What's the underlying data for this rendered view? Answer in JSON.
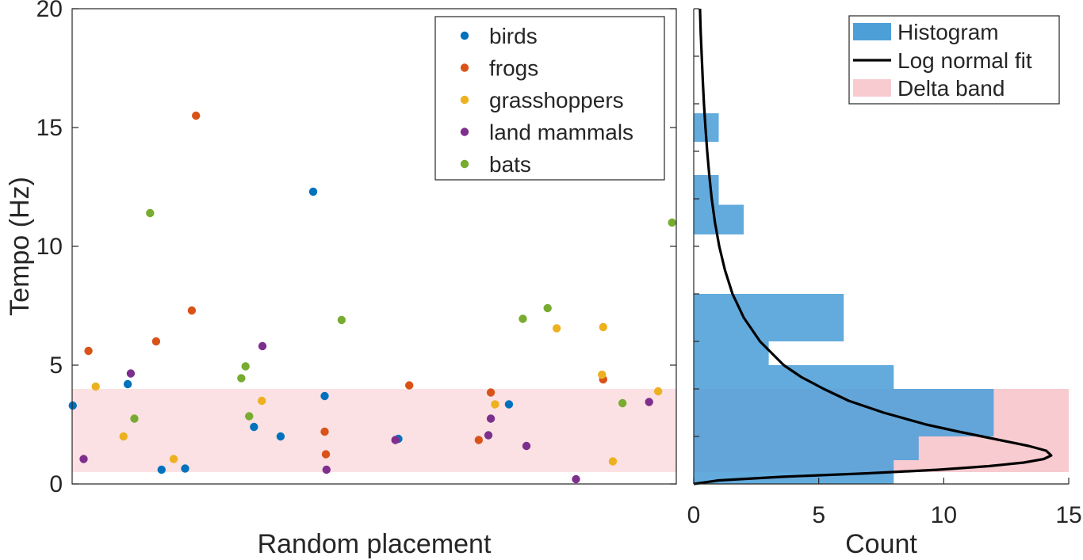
{
  "chart_data": [
    {
      "type": "scatter",
      "xlabel": "Random placement",
      "ylabel": "Tempo (Hz)",
      "ylim": [
        0,
        20
      ],
      "xlim": [
        0,
        1
      ],
      "yticks": [
        "0",
        "5",
        "10",
        "15",
        "20"
      ],
      "legend_position": "top-right",
      "band": {
        "y0": 0.5,
        "y1": 4.0,
        "color": "#fbe1e3"
      },
      "series": [
        {
          "name": "birds",
          "color": "#0072bd",
          "points": [
            {
              "x": 0.001,
              "y": 3.3
            },
            {
              "x": 0.092,
              "y": 4.2
            },
            {
              "x": 0.148,
              "y": 0.6
            },
            {
              "x": 0.187,
              "y": 0.65
            },
            {
              "x": 0.301,
              "y": 2.4
            },
            {
              "x": 0.345,
              "y": 2.0
            },
            {
              "x": 0.399,
              "y": 12.3
            },
            {
              "x": 0.418,
              "y": 3.7
            },
            {
              "x": 0.54,
              "y": 1.9
            },
            {
              "x": 0.723,
              "y": 3.35
            }
          ]
        },
        {
          "name": "frogs",
          "color": "#d95319",
          "points": [
            {
              "x": 0.027,
              "y": 5.6
            },
            {
              "x": 0.139,
              "y": 6.0
            },
            {
              "x": 0.198,
              "y": 7.3
            },
            {
              "x": 0.205,
              "y": 15.5
            },
            {
              "x": 0.418,
              "y": 2.2
            },
            {
              "x": 0.42,
              "y": 1.25
            },
            {
              "x": 0.558,
              "y": 4.15
            },
            {
              "x": 0.673,
              "y": 1.85
            },
            {
              "x": 0.693,
              "y": 3.85
            },
            {
              "x": 0.879,
              "y": 4.4
            }
          ]
        },
        {
          "name": "grasshoppers",
          "color": "#edb120",
          "points": [
            {
              "x": 0.039,
              "y": 4.1
            },
            {
              "x": 0.085,
              "y": 2.0
            },
            {
              "x": 0.168,
              "y": 1.05
            },
            {
              "x": 0.314,
              "y": 3.5
            },
            {
              "x": 0.7,
              "y": 3.35
            },
            {
              "x": 0.802,
              "y": 6.55
            },
            {
              "x": 0.877,
              "y": 4.6
            },
            {
              "x": 0.879,
              "y": 6.6
            },
            {
              "x": 0.895,
              "y": 0.95
            },
            {
              "x": 0.97,
              "y": 3.9
            }
          ]
        },
        {
          "name": "land mammals",
          "color": "#7e2f8e",
          "points": [
            {
              "x": 0.019,
              "y": 1.05
            },
            {
              "x": 0.097,
              "y": 4.65
            },
            {
              "x": 0.315,
              "y": 5.8
            },
            {
              "x": 0.421,
              "y": 0.6
            },
            {
              "x": 0.535,
              "y": 1.85
            },
            {
              "x": 0.689,
              "y": 2.05
            },
            {
              "x": 0.693,
              "y": 2.75
            },
            {
              "x": 0.752,
              "y": 1.6
            },
            {
              "x": 0.834,
              "y": 0.2
            },
            {
              "x": 0.955,
              "y": 3.45
            }
          ]
        },
        {
          "name": "bats",
          "color": "#77ac30",
          "points": [
            {
              "x": 0.103,
              "y": 2.75
            },
            {
              "x": 0.129,
              "y": 11.4
            },
            {
              "x": 0.28,
              "y": 4.45
            },
            {
              "x": 0.287,
              "y": 4.95
            },
            {
              "x": 0.293,
              "y": 2.85
            },
            {
              "x": 0.446,
              "y": 6.9
            },
            {
              "x": 0.746,
              "y": 6.95
            },
            {
              "x": 0.787,
              "y": 7.4
            },
            {
              "x": 0.911,
              "y": 3.4
            },
            {
              "x": 0.993,
              "y": 11.0
            }
          ]
        }
      ]
    },
    {
      "type": "bar",
      "orientation": "horizontal",
      "xlabel": "Count",
      "xlim": [
        0,
        15
      ],
      "ylim": [
        0,
        20
      ],
      "xticks": [
        "0",
        "5",
        "10",
        "15"
      ],
      "legend_position": "top-right",
      "band": {
        "y0": 0.5,
        "y1": 4.0,
        "color": "#f8cbd0"
      },
      "series": [
        {
          "name": "Histogram",
          "color": "#4d9fd8",
          "bins": [
            {
              "y0": 0.0,
              "y1": 1.0,
              "count": 8
            },
            {
              "y0": 1.0,
              "y1": 2.0,
              "count": 9
            },
            {
              "y0": 2.0,
              "y1": 4.0,
              "count": 12
            },
            {
              "y0": 4.0,
              "y1": 5.0,
              "count": 8
            },
            {
              "y0": 5.0,
              "y1": 6.0,
              "count": 3
            },
            {
              "y0": 6.0,
              "y1": 8.0,
              "count": 6
            },
            {
              "y0": 10.5,
              "y1": 11.75,
              "count": 2
            },
            {
              "y0": 11.75,
              "y1": 13.0,
              "count": 1
            },
            {
              "y0": 14.4,
              "y1": 15.6,
              "count": 1
            }
          ]
        },
        {
          "name": "Log normal fit",
          "color": "#000000",
          "curve": [
            {
              "y": 0.0,
              "x": 0.0
            },
            {
              "y": 0.15,
              "x": 1.0
            },
            {
              "y": 0.3,
              "x": 3.5
            },
            {
              "y": 0.45,
              "x": 7.0
            },
            {
              "y": 0.6,
              "x": 9.8
            },
            {
              "y": 0.75,
              "x": 11.8
            },
            {
              "y": 0.9,
              "x": 13.2
            },
            {
              "y": 1.05,
              "x": 14.0
            },
            {
              "y": 1.2,
              "x": 14.3
            },
            {
              "y": 1.4,
              "x": 14.1
            },
            {
              "y": 1.6,
              "x": 13.4
            },
            {
              "y": 1.9,
              "x": 12.0
            },
            {
              "y": 2.2,
              "x": 10.6
            },
            {
              "y": 2.5,
              "x": 9.3
            },
            {
              "y": 3.0,
              "x": 7.6
            },
            {
              "y": 3.5,
              "x": 6.2
            },
            {
              "y": 4.0,
              "x": 5.2
            },
            {
              "y": 4.5,
              "x": 4.3
            },
            {
              "y": 5.0,
              "x": 3.6
            },
            {
              "y": 6.0,
              "x": 2.65
            },
            {
              "y": 7.0,
              "x": 2.0
            },
            {
              "y": 8.0,
              "x": 1.55
            },
            {
              "y": 9.0,
              "x": 1.25
            },
            {
              "y": 10.0,
              "x": 1.02
            },
            {
              "y": 11.0,
              "x": 0.85
            },
            {
              "y": 12.0,
              "x": 0.72
            },
            {
              "y": 13.0,
              "x": 0.62
            },
            {
              "y": 14.0,
              "x": 0.54
            },
            {
              "y": 15.0,
              "x": 0.47
            },
            {
              "y": 16.0,
              "x": 0.41
            },
            {
              "y": 17.0,
              "x": 0.36
            },
            {
              "y": 18.0,
              "x": 0.32
            },
            {
              "y": 19.0,
              "x": 0.28
            },
            {
              "y": 20.0,
              "x": 0.25
            }
          ]
        },
        {
          "name": "Delta band",
          "color": "#f8cbd0"
        }
      ]
    }
  ]
}
